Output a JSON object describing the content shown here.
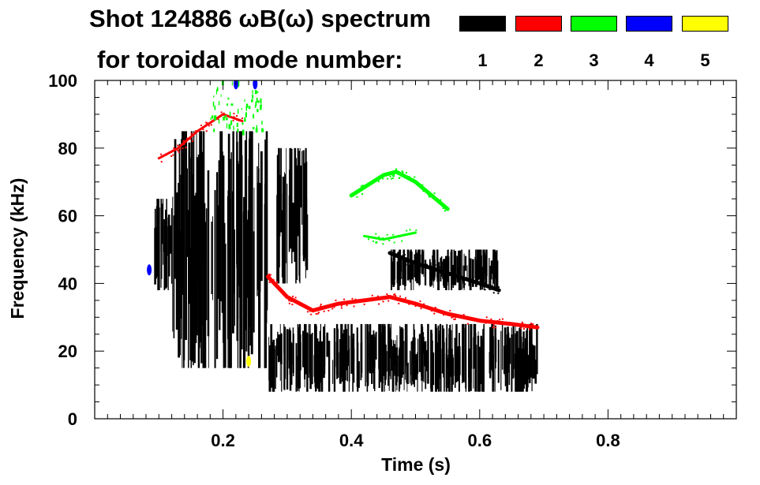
{
  "title": {
    "line1": "Shot 124886 ωB(ω) spectrum",
    "line2": "for toroidal mode number:"
  },
  "legend": [
    {
      "label": "1",
      "color": "#000000"
    },
    {
      "label": "2",
      "color": "#ff0000"
    },
    {
      "label": "3",
      "color": "#00ff00"
    },
    {
      "label": "4",
      "color": "#0000ff"
    },
    {
      "label": "5",
      "color": "#ffff00"
    }
  ],
  "chart_data": {
    "type": "heatmap",
    "title": "Shot 124886 ωB(ω) spectrum for toroidal mode number",
    "xlabel": "Time (s)",
    "ylabel": "Frequency (kHz)",
    "xlim": [
      0.0,
      1.0
    ],
    "ylim": [
      0,
      100
    ],
    "xticks": [
      0.2,
      0.4,
      0.6,
      0.8
    ],
    "xtick_labels": [
      "0.2",
      "0.4",
      "0.6",
      "0.8"
    ],
    "yticks": [
      0,
      20,
      40,
      60,
      80,
      100
    ],
    "ytick_labels": [
      "0",
      "20",
      "40",
      "60",
      "80",
      "100"
    ],
    "series": [
      {
        "name": "n=1",
        "color": "#000000",
        "regions": [
          {
            "t": [
              0.09,
              0.12
            ],
            "f": [
              38,
              65
            ]
          },
          {
            "t": [
              0.12,
              0.27
            ],
            "f": [
              15,
              85
            ]
          },
          {
            "t": [
              0.27,
              0.69
            ],
            "f": [
              8,
              28
            ]
          },
          {
            "t": [
              0.28,
              0.33
            ],
            "f": [
              40,
              80
            ]
          },
          {
            "t": [
              0.46,
              0.63
            ],
            "f": [
              38,
              50
            ]
          }
        ],
        "ridge": {
          "t": [
            0.46,
            0.5,
            0.55,
            0.6,
            0.63
          ],
          "f": [
            49,
            46,
            43,
            40,
            38
          ]
        }
      },
      {
        "name": "n=2",
        "color": "#ff0000",
        "ridge": {
          "t": [
            0.27,
            0.3,
            0.34,
            0.38,
            0.42,
            0.46,
            0.5,
            0.55,
            0.6,
            0.65,
            0.69
          ],
          "f": [
            42,
            36,
            32,
            34,
            35,
            36,
            34,
            31,
            29,
            28,
            27
          ]
        },
        "early_ridge": {
          "t": [
            0.1,
            0.13,
            0.16,
            0.2,
            0.23
          ],
          "f": [
            77,
            80,
            85,
            90,
            88
          ]
        }
      },
      {
        "name": "n=3",
        "color": "#00ff00",
        "ridge": {
          "t": [
            0.4,
            0.45,
            0.47,
            0.5,
            0.55
          ],
          "f": [
            66,
            72,
            73,
            70,
            62
          ]
        },
        "secondary": {
          "t": [
            0.42,
            0.45,
            0.5
          ],
          "f": [
            54,
            53,
            55
          ]
        },
        "early_band": {
          "t": [
            0.18,
            0.26
          ],
          "f": [
            85,
            100
          ]
        }
      },
      {
        "name": "n=4",
        "color": "#0000ff",
        "points": [
          {
            "t": 0.085,
            "f": 44
          },
          {
            "t": 0.25,
            "f": 99
          },
          {
            "t": 0.22,
            "f": 99
          }
        ]
      },
      {
        "name": "n=5",
        "color": "#ffff00",
        "points": [
          {
            "t": 0.24,
            "f": 17
          }
        ]
      }
    ]
  }
}
